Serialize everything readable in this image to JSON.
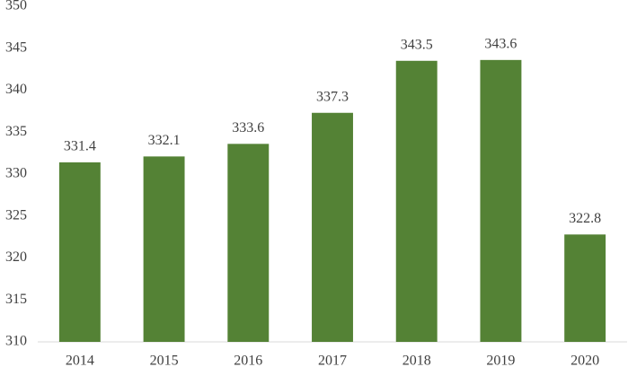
{
  "chart_data": {
    "type": "bar",
    "categories": [
      "2014",
      "2015",
      "2016",
      "2017",
      "2018",
      "2019",
      "2020"
    ],
    "values": [
      331.4,
      332.1,
      333.6,
      337.3,
      343.5,
      343.6,
      322.8
    ],
    "color": "#548235",
    "ylim": [
      310,
      350
    ],
    "yticks": [
      310,
      315,
      320,
      325,
      330,
      335,
      340,
      345,
      350
    ],
    "grid": false
  }
}
